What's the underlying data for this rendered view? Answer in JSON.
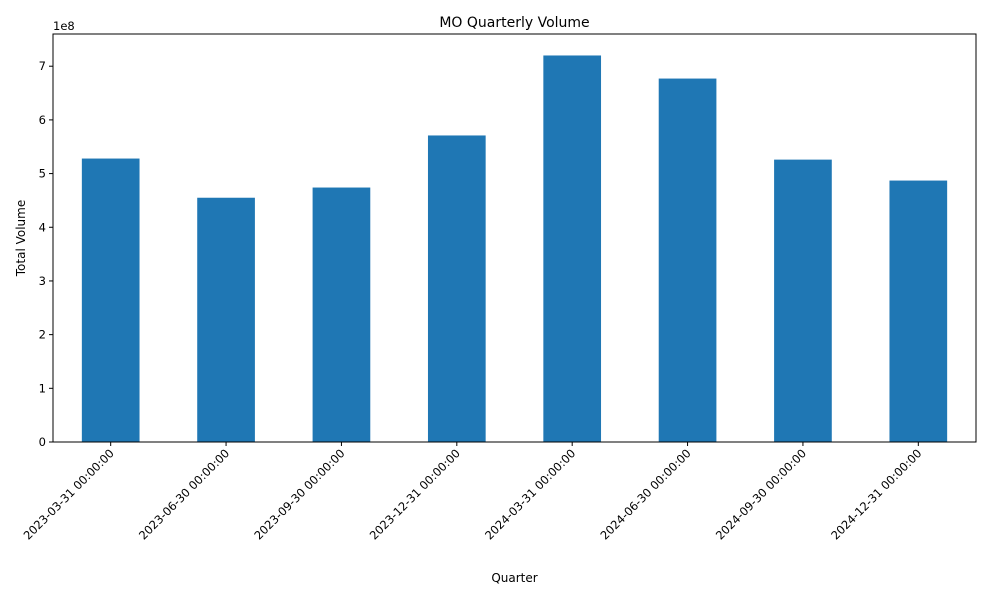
{
  "chart_data": {
    "type": "bar",
    "title": "MO Quarterly Volume",
    "xlabel": "Quarter",
    "ylabel": "Total Volume",
    "y_offset_label": "1e8",
    "color": "#1f77b4",
    "categories": [
      "2023-03-31 00:00:00",
      "2023-06-30 00:00:00",
      "2023-09-30 00:00:00",
      "2023-12-31 00:00:00",
      "2024-03-31 00:00:00",
      "2024-06-30 00:00:00",
      "2024-09-30 00:00:00",
      "2024-12-31 00:00:00"
    ],
    "values": [
      528000000,
      455000000,
      474000000,
      571000000,
      720000000,
      677000000,
      526000000,
      487000000
    ],
    "ylim": [
      0,
      760000000
    ],
    "yticks": [
      0,
      100000000,
      200000000,
      300000000,
      400000000,
      500000000,
      600000000,
      700000000
    ],
    "ytick_labels": [
      "0",
      "1",
      "2",
      "3",
      "4",
      "5",
      "6",
      "7"
    ],
    "grid": false,
    "legend": false
  }
}
